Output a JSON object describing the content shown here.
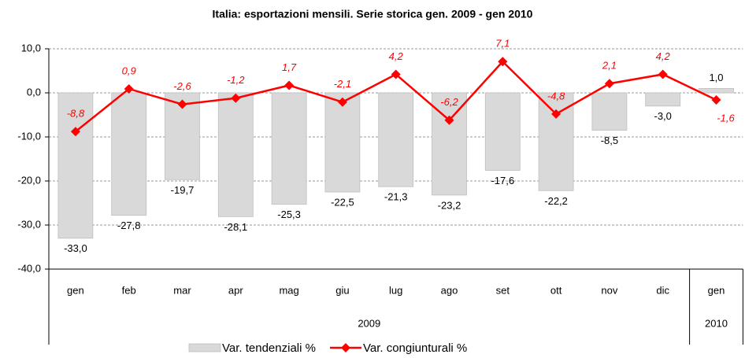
{
  "chart_data": {
    "type": "bar-line",
    "title": "Italia: esportazioni mensili. Serie storica gen. 2009 - gen 2010",
    "categories": [
      "gen",
      "feb",
      "mar",
      "apr",
      "mag",
      "giu",
      "lug",
      "ago",
      "set",
      "ott",
      "nov",
      "dic",
      "gen"
    ],
    "x_groups": [
      {
        "label": "2009",
        "span": 12
      },
      {
        "label": "2010",
        "span": 1
      }
    ],
    "ylim": [
      -40,
      10
    ],
    "yticks": [
      {
        "value": 10,
        "label": "10,0"
      },
      {
        "value": 0,
        "label": "0,0"
      },
      {
        "value": -10,
        "label": "-10,0"
      },
      {
        "value": -20,
        "label": "-20,0"
      },
      {
        "value": -30,
        "label": "-30,0"
      },
      {
        "value": -40,
        "label": "-40,0"
      }
    ],
    "grid": true,
    "series": [
      {
        "name": "Var. tendenziali %",
        "type": "bar",
        "color": "#d9d9d9",
        "values": [
          -33.0,
          -27.8,
          -19.7,
          -28.1,
          -25.3,
          -22.5,
          -21.3,
          -23.2,
          -17.6,
          -22.2,
          -8.5,
          -3.0,
          1.0
        ],
        "value_labels": [
          "-33,0",
          "-27,8",
          "-19,7",
          "-28,1",
          "-25,3",
          "-22,5",
          "-21,3",
          "-23,2",
          "-17,6",
          "-22,2",
          "-8,5",
          "-3,0",
          "1,0"
        ]
      },
      {
        "name": "Var. congiunturali %",
        "type": "line",
        "color": "#ff0000",
        "values": [
          -8.8,
          0.9,
          -2.6,
          -1.2,
          1.7,
          -2.1,
          4.2,
          -6.2,
          7.1,
          -4.8,
          2.1,
          4.2,
          -1.6
        ],
        "value_labels": [
          "-8,8",
          "0,9",
          "-2,6",
          "-1,2",
          "1,7",
          "-2,1",
          "4,2",
          "-6,2",
          "7,1",
          "-4,8",
          "2,1",
          "4,2",
          "-1,6"
        ]
      }
    ]
  }
}
